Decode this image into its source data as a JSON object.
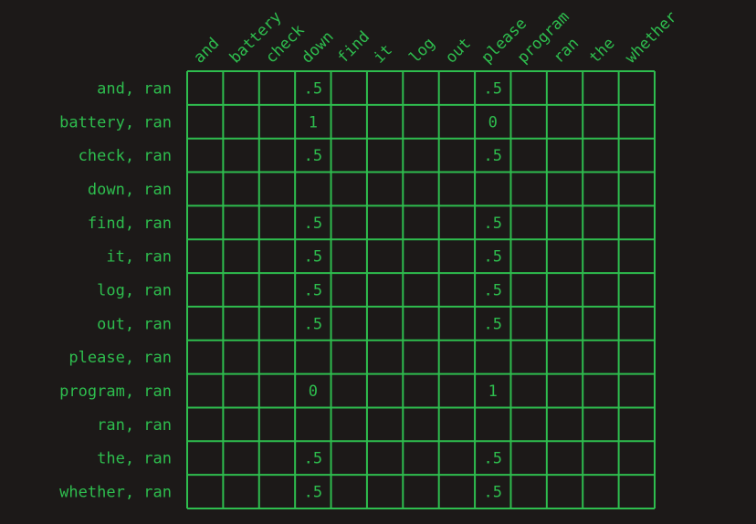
{
  "colors": {
    "background": "#1c1918",
    "grid_line": "#2ebd4e",
    "text": "#2ebd4e"
  },
  "chart_data": {
    "type": "table",
    "columns": [
      "and",
      "battery",
      "check",
      "down",
      "find",
      "it",
      "log",
      "out",
      "please",
      "program",
      "ran",
      "the",
      "whether"
    ],
    "rows": [
      {
        "label": "and, ran",
        "cells": [
          "",
          "",
          "",
          ".5",
          "",
          "",
          "",
          "",
          ".5",
          "",
          "",
          "",
          ""
        ]
      },
      {
        "label": "battery, ran",
        "cells": [
          "",
          "",
          "",
          "1",
          "",
          "",
          "",
          "",
          "0",
          "",
          "",
          "",
          ""
        ]
      },
      {
        "label": "check, ran",
        "cells": [
          "",
          "",
          "",
          ".5",
          "",
          "",
          "",
          "",
          ".5",
          "",
          "",
          "",
          ""
        ]
      },
      {
        "label": "down, ran",
        "cells": [
          "",
          "",
          "",
          "",
          "",
          "",
          "",
          "",
          "",
          "",
          "",
          "",
          ""
        ]
      },
      {
        "label": "find, ran",
        "cells": [
          "",
          "",
          "",
          ".5",
          "",
          "",
          "",
          "",
          ".5",
          "",
          "",
          "",
          ""
        ]
      },
      {
        "label": "it, ran",
        "cells": [
          "",
          "",
          "",
          ".5",
          "",
          "",
          "",
          "",
          ".5",
          "",
          "",
          "",
          ""
        ]
      },
      {
        "label": "log, ran",
        "cells": [
          "",
          "",
          "",
          ".5",
          "",
          "",
          "",
          "",
          ".5",
          "",
          "",
          "",
          ""
        ]
      },
      {
        "label": "out, ran",
        "cells": [
          "",
          "",
          "",
          ".5",
          "",
          "",
          "",
          "",
          ".5",
          "",
          "",
          "",
          ""
        ]
      },
      {
        "label": "please, ran",
        "cells": [
          "",
          "",
          "",
          "",
          "",
          "",
          "",
          "",
          "",
          "",
          "",
          "",
          ""
        ]
      },
      {
        "label": "program, ran",
        "cells": [
          "",
          "",
          "",
          "0",
          "",
          "",
          "",
          "",
          "1",
          "",
          "",
          "",
          ""
        ]
      },
      {
        "label": "ran, ran",
        "cells": [
          "",
          "",
          "",
          "",
          "",
          "",
          "",
          "",
          "",
          "",
          "",
          "",
          ""
        ]
      },
      {
        "label": "the, ran",
        "cells": [
          "",
          "",
          "",
          ".5",
          "",
          "",
          "",
          "",
          ".5",
          "",
          "",
          "",
          ""
        ]
      },
      {
        "label": "whether, ran",
        "cells": [
          "",
          "",
          "",
          ".5",
          "",
          "",
          "",
          "",
          ".5",
          "",
          "",
          "",
          ""
        ]
      }
    ]
  }
}
